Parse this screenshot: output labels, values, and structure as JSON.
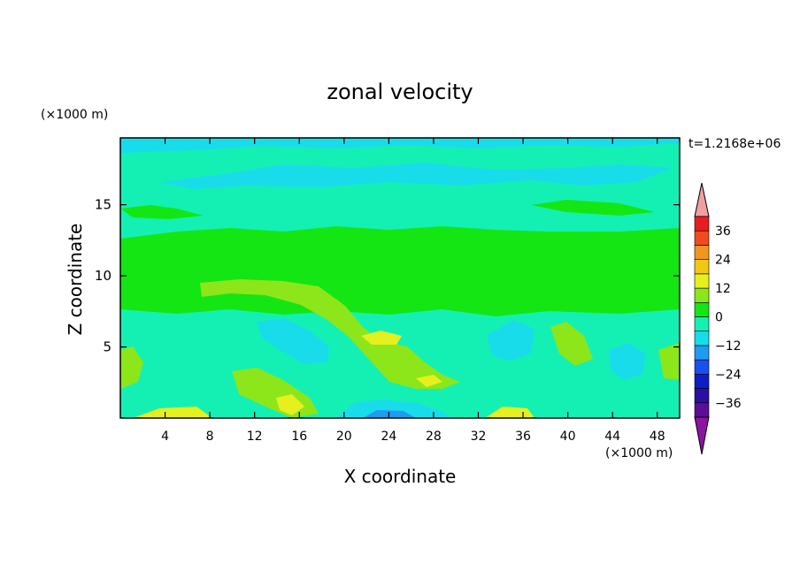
{
  "chart_data": {
    "type": "heatmap",
    "title": "zonal velocity",
    "xlabel": "X coordinate",
    "ylabel": "Z coordinate",
    "x_unit": "(×1000 m)",
    "y_unit": "(×1000 m)",
    "time_label": "t=1.2168e+06",
    "xlim": [
      0,
      50
    ],
    "ylim": [
      0,
      19.7
    ],
    "x_ticks": [
      4,
      8,
      12,
      16,
      20,
      24,
      28,
      32,
      36,
      40,
      44,
      48
    ],
    "y_ticks": [
      5,
      10,
      15
    ],
    "x_tick_labels": [
      "4",
      "8",
      "12",
      "16",
      "20",
      "24",
      "28",
      "32",
      "36",
      "40",
      "44",
      "48"
    ],
    "y_tick_labels": [
      "5",
      "10",
      "15"
    ],
    "colorbar": {
      "levels": [
        -42,
        -36,
        -30,
        -24,
        -18,
        -12,
        -6,
        0,
        6,
        12,
        18,
        24,
        30,
        36,
        42
      ],
      "tick_values": [
        -36,
        -24,
        -12,
        0,
        12,
        24,
        36
      ],
      "tick_labels": [
        "−36",
        "−24",
        "−12",
        "0",
        "12",
        "24",
        "36"
      ],
      "colors": [
        "#5a0f96",
        "#2a0fa0",
        "#0d1ec8",
        "#1a4ff0",
        "#1f9bf0",
        "#19dceb",
        "#14f0b4",
        "#14e614",
        "#8ce619",
        "#e6f01e",
        "#f0c814",
        "#f0961e",
        "#f04b1e",
        "#e61e1e"
      ],
      "under_color": "#8c14a0",
      "over_color": "#f0a0a0"
    }
  }
}
